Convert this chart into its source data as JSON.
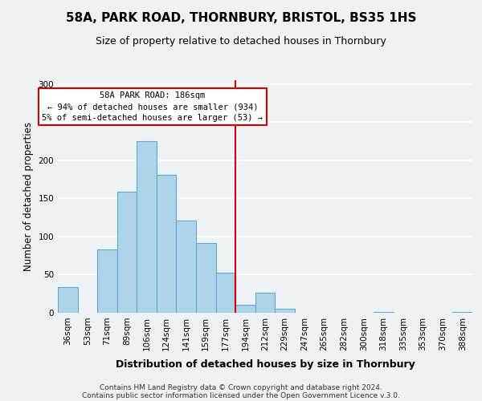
{
  "title": "58A, PARK ROAD, THORNBURY, BRISTOL, BS35 1HS",
  "subtitle": "Size of property relative to detached houses in Thornbury",
  "xlabel": "Distribution of detached houses by size in Thornbury",
  "ylabel": "Number of detached properties",
  "footer_lines": [
    "Contains HM Land Registry data © Crown copyright and database right 2024.",
    "Contains public sector information licensed under the Open Government Licence v.3.0."
  ],
  "bin_labels": [
    "36sqm",
    "53sqm",
    "71sqm",
    "89sqm",
    "106sqm",
    "124sqm",
    "141sqm",
    "159sqm",
    "177sqm",
    "194sqm",
    "212sqm",
    "229sqm",
    "247sqm",
    "265sqm",
    "282sqm",
    "300sqm",
    "318sqm",
    "335sqm",
    "353sqm",
    "370sqm",
    "388sqm"
  ],
  "bar_heights": [
    34,
    0,
    83,
    159,
    225,
    181,
    121,
    92,
    53,
    11,
    26,
    5,
    0,
    0,
    0,
    0,
    1,
    0,
    0,
    0,
    1
  ],
  "bar_color": "#aed4e8",
  "bar_edge_color": "#5baad0",
  "marker_bin_index": 8.5,
  "marker_color": "#cc0000",
  "annotation_title": "58A PARK ROAD: 186sqm",
  "annotation_line1": "← 94% of detached houses are smaller (934)",
  "annotation_line2": "5% of semi-detached houses are larger (53) →",
  "annotation_box_color": "#ffffff",
  "annotation_box_edge": "#cc0000",
  "ylim": [
    0,
    305
  ],
  "background_color": "#eef2f7",
  "plot_bg_color": "#eef2f7",
  "grid_color": "#ffffff",
  "title_fontsize": 11,
  "subtitle_fontsize": 9,
  "ylabel_fontsize": 8.5,
  "xlabel_fontsize": 9,
  "tick_fontsize": 7.5,
  "footer_fontsize": 6.5
}
